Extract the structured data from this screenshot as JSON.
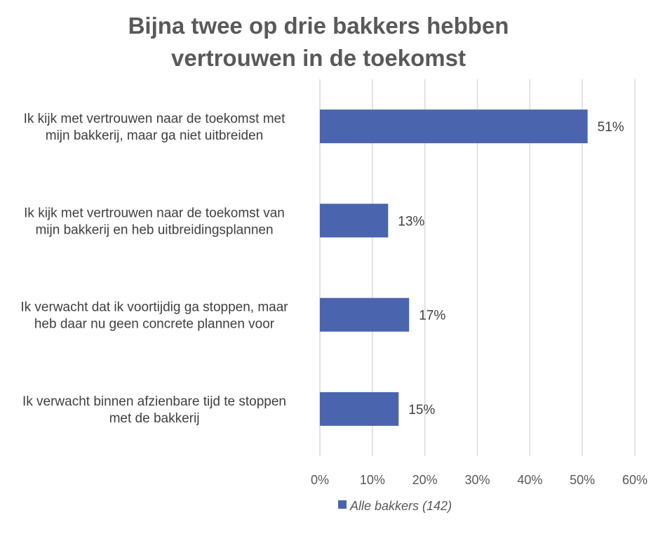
{
  "chart_data": {
    "type": "bar",
    "orientation": "horizontal",
    "title": "Bijna twee op drie bakkers hebben vertrouwen in de toekomst",
    "title_lines": [
      "Bijna twee op drie bakkers hebben",
      "vertrouwen in de toekomst"
    ],
    "categories": [
      [
        "Ik kijk met vertrouwen naar de toekomst met",
        "mijn bakkerij, maar ga niet uitbreiden"
      ],
      [
        "Ik kijk met vertrouwen naar de toekomst van",
        "mijn bakkerij en heb uitbreidingsplannen"
      ],
      [
        "Ik verwacht dat ik voortijdig ga stoppen, maar",
        "heb daar nu geen concrete plannen voor"
      ],
      [
        "Ik verwacht binnen afzienbare tijd te stoppen",
        "met de bakkerij"
      ]
    ],
    "series": [
      {
        "name": "Alle bakkers (142)",
        "color": "#4a65ad",
        "values": [
          51,
          13,
          17,
          15
        ],
        "data_labels": [
          "51%",
          "13%",
          "17%",
          "15%"
        ]
      }
    ],
    "x_ticks": [
      "0%",
      "10%",
      "20%",
      "30%",
      "40%",
      "50%",
      "60%"
    ],
    "xlim": [
      0,
      60
    ],
    "grid": true,
    "legend_position": "bottom"
  }
}
